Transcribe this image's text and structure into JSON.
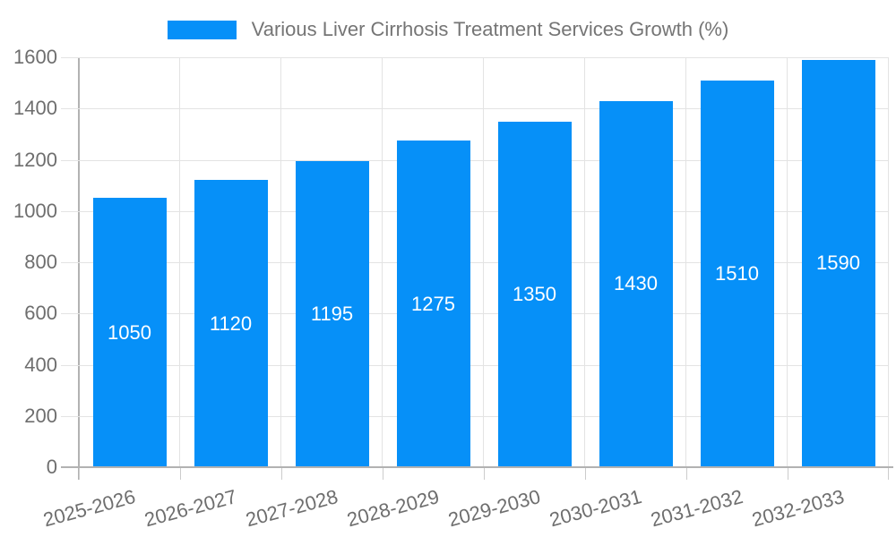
{
  "chart_data": {
    "type": "bar",
    "title": "Various Liver Cirrhosis Treatment Services Growth (%)",
    "categories": [
      "2025-2026",
      "2026-2027",
      "2027-2028",
      "2028-2029",
      "2029-2030",
      "2030-2031",
      "2031-2032",
      "2032-2033"
    ],
    "values": [
      1050,
      1120,
      1195,
      1275,
      1350,
      1430,
      1510,
      1590
    ],
    "xlabel": "",
    "ylabel": "",
    "ylim": [
      0,
      1600
    ],
    "ytick_step": 200,
    "grid": "on",
    "legend_position": "top-center",
    "value_labels": "inside-center",
    "xtick_rotation_deg": -15,
    "colors": {
      "bar": "#0690f8",
      "grid": "#e3e3e3",
      "axis": "#b2b2b2",
      "tick_text": "#6e6e6e",
      "legend_text": "#757575",
      "bar_label_text": "#ffffff"
    }
  }
}
